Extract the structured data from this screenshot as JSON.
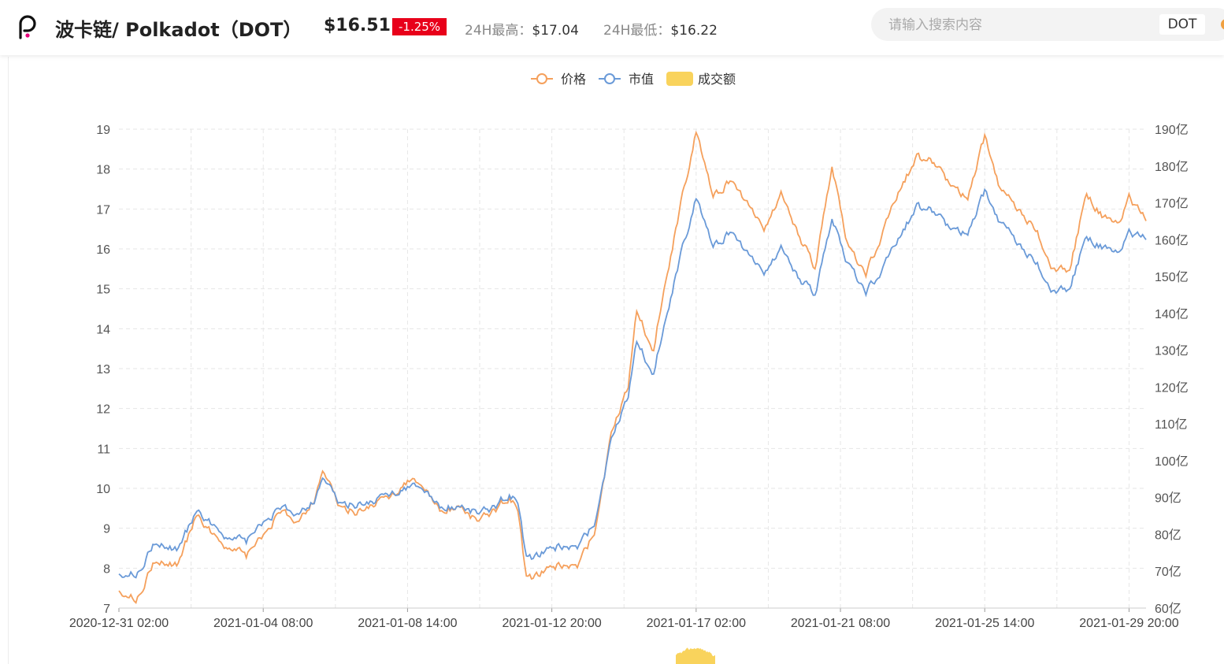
{
  "header": {
    "coin_name": "波卡链/ Polkadot（DOT）",
    "price": "$16.51",
    "change": "-1.25%",
    "high_label": "24H最高：",
    "high_value": "$17.04",
    "low_label": "24H最低：",
    "low_value": "$16.22",
    "logo_icon": "polkadot-logo-icon"
  },
  "search": {
    "placeholder": "请输入搜索内容",
    "coin_tag": "DOT"
  },
  "colors": {
    "price": "#f5a05c",
    "market_cap": "#6a9ad8",
    "volume": "#f9d35c",
    "down": "#e8001a"
  },
  "chart_data": {
    "type": "line",
    "legend": [
      "价格",
      "市值",
      "成交额"
    ],
    "legend_position": "top-center",
    "x_tick_labels": [
      "2020-12-31 02:00",
      "2021-01-04 08:00",
      "2021-01-08 14:00",
      "2021-01-12 20:00",
      "2021-01-17 02:00",
      "2021-01-21 08:00",
      "2021-01-25 14:00",
      "2021-01-29 20:00"
    ],
    "x_range": [
      "2020-12-31 02:00",
      "2021-01-30 08:00"
    ],
    "y_left": {
      "ticks": [
        "7",
        "8",
        "9",
        "10",
        "11",
        "12",
        "13",
        "14",
        "15",
        "16",
        "17",
        "18",
        "19"
      ],
      "range": [
        7,
        19
      ]
    },
    "y_right": {
      "ticks": [
        "60亿",
        "70亿",
        "80亿",
        "90亿",
        "100亿",
        "110亿",
        "120亿",
        "130亿",
        "140亿",
        "150亿",
        "160亿",
        "170亿",
        "180亿",
        "190亿"
      ],
      "range": [
        60,
        190
      ],
      "unit": "亿"
    },
    "grid": true,
    "series": [
      {
        "name": "价格",
        "axis": "left",
        "points": [
          [
            "2020-12-31 02:00",
            7.5
          ],
          [
            "2020-12-31 14:00",
            7.2
          ],
          [
            "2021-01-01 02:00",
            8.1
          ],
          [
            "2021-01-01 20:00",
            8.1
          ],
          [
            "2021-01-02 08:00",
            9.3
          ],
          [
            "2021-01-02 20:00",
            8.9
          ],
          [
            "2021-01-03 08:00",
            8.5
          ],
          [
            "2021-01-03 20:00",
            8.3
          ],
          [
            "2021-01-04 08:00",
            8.8
          ],
          [
            "2021-01-04 20:00",
            9.4
          ],
          [
            "2021-01-05 08:00",
            9.2
          ],
          [
            "2021-01-05 20:00",
            9.7
          ],
          [
            "2021-01-06 02:00",
            10.5
          ],
          [
            "2021-01-06 14:00",
            9.5
          ],
          [
            "2021-01-07 02:00",
            9.4
          ],
          [
            "2021-01-07 14:00",
            9.6
          ],
          [
            "2021-01-08 02:00",
            9.8
          ],
          [
            "2021-01-08 14:00",
            10.2
          ],
          [
            "2021-01-09 02:00",
            10.0
          ],
          [
            "2021-01-09 14:00",
            9.4
          ],
          [
            "2021-01-10 02:00",
            9.6
          ],
          [
            "2021-01-10 14:00",
            9.2
          ],
          [
            "2021-01-11 02:00",
            9.4
          ],
          [
            "2021-01-11 14:00",
            9.8
          ],
          [
            "2021-01-11 20:00",
            9.4
          ],
          [
            "2021-01-12 02:00",
            7.7
          ],
          [
            "2021-01-12 14:00",
            7.9
          ],
          [
            "2021-01-13 02:00",
            8.1
          ],
          [
            "2021-01-13 14:00",
            8.0
          ],
          [
            "2021-01-14 02:00",
            8.9
          ],
          [
            "2021-01-14 14:00",
            11.3
          ],
          [
            "2021-01-15 02:00",
            12.6
          ],
          [
            "2021-01-15 08:00",
            14.5
          ],
          [
            "2021-01-15 20:00",
            13.4
          ],
          [
            "2021-01-16 02:00",
            14.8
          ],
          [
            "2021-01-16 14:00",
            16.9
          ],
          [
            "2021-01-17 02:00",
            19.0
          ],
          [
            "2021-01-17 14:00",
            17.3
          ],
          [
            "2021-01-18 02:00",
            17.7
          ],
          [
            "2021-01-18 14:00",
            17.2
          ],
          [
            "2021-01-19 02:00",
            16.5
          ],
          [
            "2021-01-19 14:00",
            17.4
          ],
          [
            "2021-01-20 02:00",
            16.4
          ],
          [
            "2021-01-20 14:00",
            15.5
          ],
          [
            "2021-01-21 02:00",
            18.0
          ],
          [
            "2021-01-21 14:00",
            16.0
          ],
          [
            "2021-01-22 02:00",
            15.4
          ],
          [
            "2021-01-22 14:00",
            16.4
          ],
          [
            "2021-01-23 02:00",
            17.5
          ],
          [
            "2021-01-23 14:00",
            18.3
          ],
          [
            "2021-01-24 02:00",
            18.2
          ],
          [
            "2021-01-24 14:00",
            17.6
          ],
          [
            "2021-01-25 02:00",
            17.3
          ],
          [
            "2021-01-25 14:00",
            18.8
          ],
          [
            "2021-01-26 02:00",
            17.4
          ],
          [
            "2021-01-26 14:00",
            17.0
          ],
          [
            "2021-01-27 02:00",
            16.5
          ],
          [
            "2021-01-27 14:00",
            15.5
          ],
          [
            "2021-01-28 02:00",
            15.5
          ],
          [
            "2021-01-28 14:00",
            17.4
          ],
          [
            "2021-01-29 02:00",
            16.8
          ],
          [
            "2021-01-29 14:00",
            16.6
          ],
          [
            "2021-01-29 20:00",
            17.3
          ],
          [
            "2021-01-30 08:00",
            16.7
          ]
        ]
      },
      {
        "name": "市值",
        "axis": "right",
        "points": [
          [
            "2020-12-31 02:00",
            70
          ],
          [
            "2020-12-31 14:00",
            69
          ],
          [
            "2021-01-01 02:00",
            77
          ],
          [
            "2021-01-01 20:00",
            76
          ],
          [
            "2021-01-02 08:00",
            86
          ],
          [
            "2021-01-02 20:00",
            83
          ],
          [
            "2021-01-03 08:00",
            79
          ],
          [
            "2021-01-03 20:00",
            78
          ],
          [
            "2021-01-04 08:00",
            83
          ],
          [
            "2021-01-04 20:00",
            87
          ],
          [
            "2021-01-05 08:00",
            86
          ],
          [
            "2021-01-05 20:00",
            89
          ],
          [
            "2021-01-06 02:00",
            96
          ],
          [
            "2021-01-06 14:00",
            88
          ],
          [
            "2021-01-07 02:00",
            88
          ],
          [
            "2021-01-07 14:00",
            89
          ],
          [
            "2021-01-08 02:00",
            91
          ],
          [
            "2021-01-08 14:00",
            93
          ],
          [
            "2021-01-09 02:00",
            92
          ],
          [
            "2021-01-09 14:00",
            87
          ],
          [
            "2021-01-10 02:00",
            88
          ],
          [
            "2021-01-10 14:00",
            86
          ],
          [
            "2021-01-11 02:00",
            87
          ],
          [
            "2021-01-11 14:00",
            91
          ],
          [
            "2021-01-11 20:00",
            88
          ],
          [
            "2021-01-12 02:00",
            73
          ],
          [
            "2021-01-12 14:00",
            75
          ],
          [
            "2021-01-13 02:00",
            77
          ],
          [
            "2021-01-13 14:00",
            76
          ],
          [
            "2021-01-14 02:00",
            83
          ],
          [
            "2021-01-14 14:00",
            105
          ],
          [
            "2021-01-15 02:00",
            118
          ],
          [
            "2021-01-15 08:00",
            133
          ],
          [
            "2021-01-15 20:00",
            123
          ],
          [
            "2021-01-16 02:00",
            135
          ],
          [
            "2021-01-16 14:00",
            154
          ],
          [
            "2021-01-17 02:00",
            172
          ],
          [
            "2021-01-17 14:00",
            158
          ],
          [
            "2021-01-18 02:00",
            162
          ],
          [
            "2021-01-18 14:00",
            157
          ],
          [
            "2021-01-19 02:00",
            151
          ],
          [
            "2021-01-19 14:00",
            158
          ],
          [
            "2021-01-20 02:00",
            150
          ],
          [
            "2021-01-20 14:00",
            145
          ],
          [
            "2021-01-21 02:00",
            165
          ],
          [
            "2021-01-21 14:00",
            153
          ],
          [
            "2021-01-22 02:00",
            146
          ],
          [
            "2021-01-22 14:00",
            152
          ],
          [
            "2021-01-23 02:00",
            161
          ],
          [
            "2021-01-23 14:00",
            169
          ],
          [
            "2021-01-24 02:00",
            168
          ],
          [
            "2021-01-24 14:00",
            163
          ],
          [
            "2021-01-25 02:00",
            162
          ],
          [
            "2021-01-25 14:00",
            173
          ],
          [
            "2021-01-26 02:00",
            164
          ],
          [
            "2021-01-26 14:00",
            159
          ],
          [
            "2021-01-27 02:00",
            154
          ],
          [
            "2021-01-27 14:00",
            146
          ],
          [
            "2021-01-28 02:00",
            147
          ],
          [
            "2021-01-28 14:00",
            161
          ],
          [
            "2021-01-29 02:00",
            158
          ],
          [
            "2021-01-29 14:00",
            156
          ],
          [
            "2021-01-29 20:00",
            162
          ],
          [
            "2021-01-30 08:00",
            160
          ]
        ]
      }
    ]
  }
}
